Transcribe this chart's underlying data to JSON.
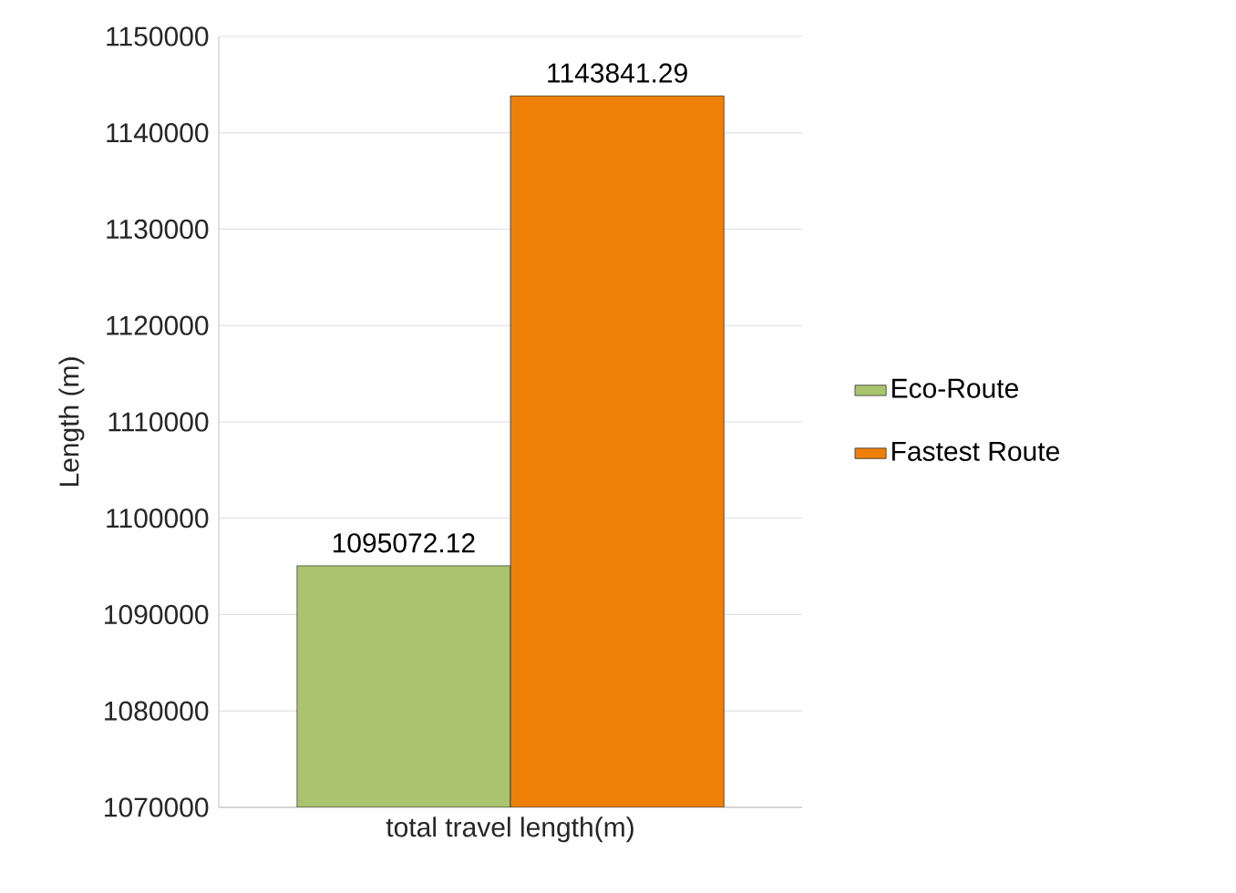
{
  "chart_data": {
    "type": "bar",
    "ylabel": "Length (m)",
    "categories": [
      "total travel length(m)"
    ],
    "series": [
      {
        "name": "Eco-Route",
        "color": "#a9c46c",
        "values": [
          1095072.12
        ]
      },
      {
        "name": "Fastest Route",
        "color": "#ee8008",
        "values": [
          1143841.29
        ]
      }
    ],
    "ylim": [
      1070000,
      1150000
    ],
    "yticks": [
      1070000,
      1080000,
      1090000,
      1100000,
      1110000,
      1120000,
      1130000,
      1140000,
      1150000
    ],
    "grid": "y",
    "legend": "right",
    "data_labels": true
  }
}
